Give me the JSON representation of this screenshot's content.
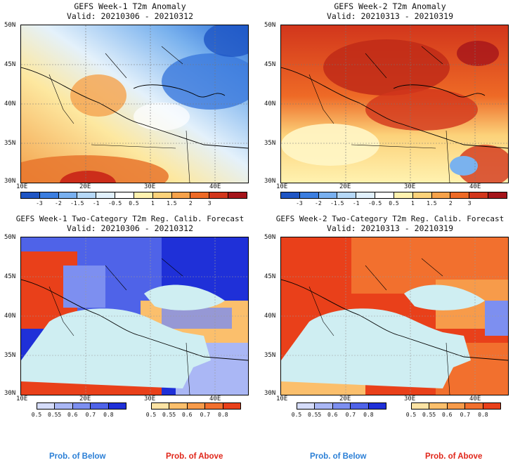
{
  "panels": [
    {
      "id": "w1-anom",
      "title1": "GEFS Week-1 T2m Anomaly",
      "title2": "Valid: 20210306 - 20210312",
      "lat_labels": [
        "50N",
        "45N",
        "40N",
        "35N",
        "30N"
      ],
      "lon_labels": [
        "10E",
        "20E",
        "30E",
        "40E"
      ]
    },
    {
      "id": "w2-anom",
      "title1": "GEFS Week-2 T2m Anomaly",
      "title2": "Valid: 20210313 - 20210319",
      "lat_labels": [
        "50N",
        "45N",
        "40N",
        "35N",
        "30N"
      ],
      "lon_labels": [
        "10E",
        "20E",
        "30E",
        "40E"
      ]
    },
    {
      "id": "w1-prob",
      "title1": "GEFS Week-1 Two-Category T2m Reg. Calib. Forecast",
      "title2": "Valid: 20210306 - 20210312",
      "lat_labels": [
        "50N",
        "45N",
        "40N",
        "35N",
        "30N"
      ],
      "lon_labels": [
        "10E",
        "20E",
        "30E",
        "40E"
      ]
    },
    {
      "id": "w2-prob",
      "title1": "GEFS Week-2 Two-Category T2m Reg. Calib. Forecast",
      "title2": "Valid: 20210313 - 20210319",
      "lat_labels": [
        "50N",
        "45N",
        "40N",
        "35N",
        "30N"
      ],
      "lon_labels": [
        "10E",
        "20E",
        "30E",
        "40E"
      ]
    }
  ],
  "anomaly_scale": {
    "labels": [
      "-3",
      "-2",
      "-1.5",
      "-1",
      "-0.5",
      "0.5",
      "1",
      "1.5",
      "2",
      "3"
    ],
    "colors": [
      "#1e55c4",
      "#3b7ee0",
      "#79b0f0",
      "#b6d8f7",
      "#e1f0fc",
      "#ffffff",
      "#fff2b0",
      "#fcd27a",
      "#f7a24a",
      "#ee6a26",
      "#d2361c",
      "#a5141a"
    ]
  },
  "below_scale": {
    "labels": [
      "0.5",
      "0.55",
      "0.6",
      "0.7",
      "0.8"
    ],
    "colors": [
      "#d5dcfa",
      "#aab7f5",
      "#7d8ff0",
      "#4f63e8",
      "#1f30d8"
    ]
  },
  "above_scale": {
    "labels": [
      "0.5",
      "0.55",
      "0.6",
      "0.7",
      "0.8"
    ],
    "colors": [
      "#fde3a4",
      "#fbbf6c",
      "#f79b4a",
      "#f2702e",
      "#e9401a"
    ]
  },
  "legend": {
    "below_label": "Prob. of Below",
    "above_label": "Prob. of Above",
    "below_color": "#2b7fd6",
    "above_color": "#e0261a"
  }
}
